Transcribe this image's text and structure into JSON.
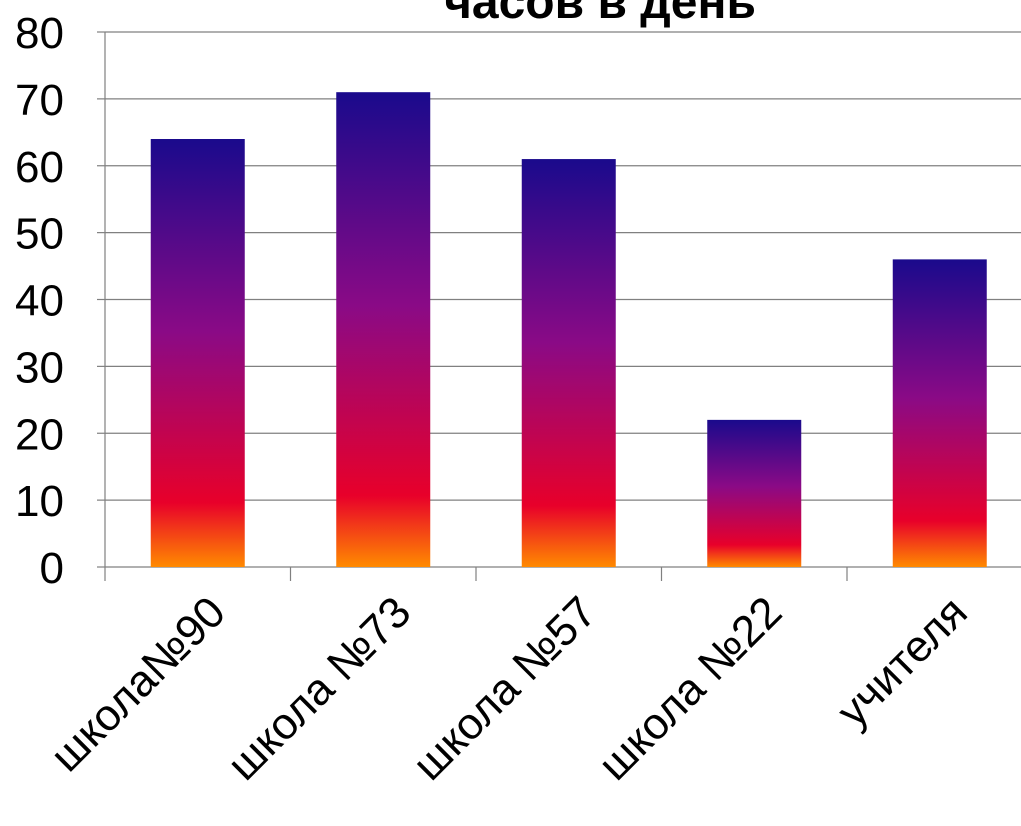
{
  "chart_data": {
    "type": "bar",
    "title": "часов в день",
    "categories": [
      "школа№90",
      "школа №73",
      "школа №57",
      "школа №22",
      "учителя"
    ],
    "values": [
      64,
      71,
      61,
      22,
      46
    ],
    "ylim": [
      0,
      80
    ],
    "y_ticks": [
      "0",
      "10",
      "20",
      "30",
      "40",
      "50",
      "60",
      "70",
      "80"
    ],
    "xlabel": "",
    "ylabel": "",
    "grid": "horizontal",
    "legend": "none",
    "colors": {
      "bar_top": "#1a0a8c",
      "bar_mid": "#8a0a86",
      "bar_low": "#e8002a",
      "bar_bottom": "#ff8a00",
      "grid": "#808080",
      "axis": "#808080",
      "text": "#000000"
    }
  }
}
